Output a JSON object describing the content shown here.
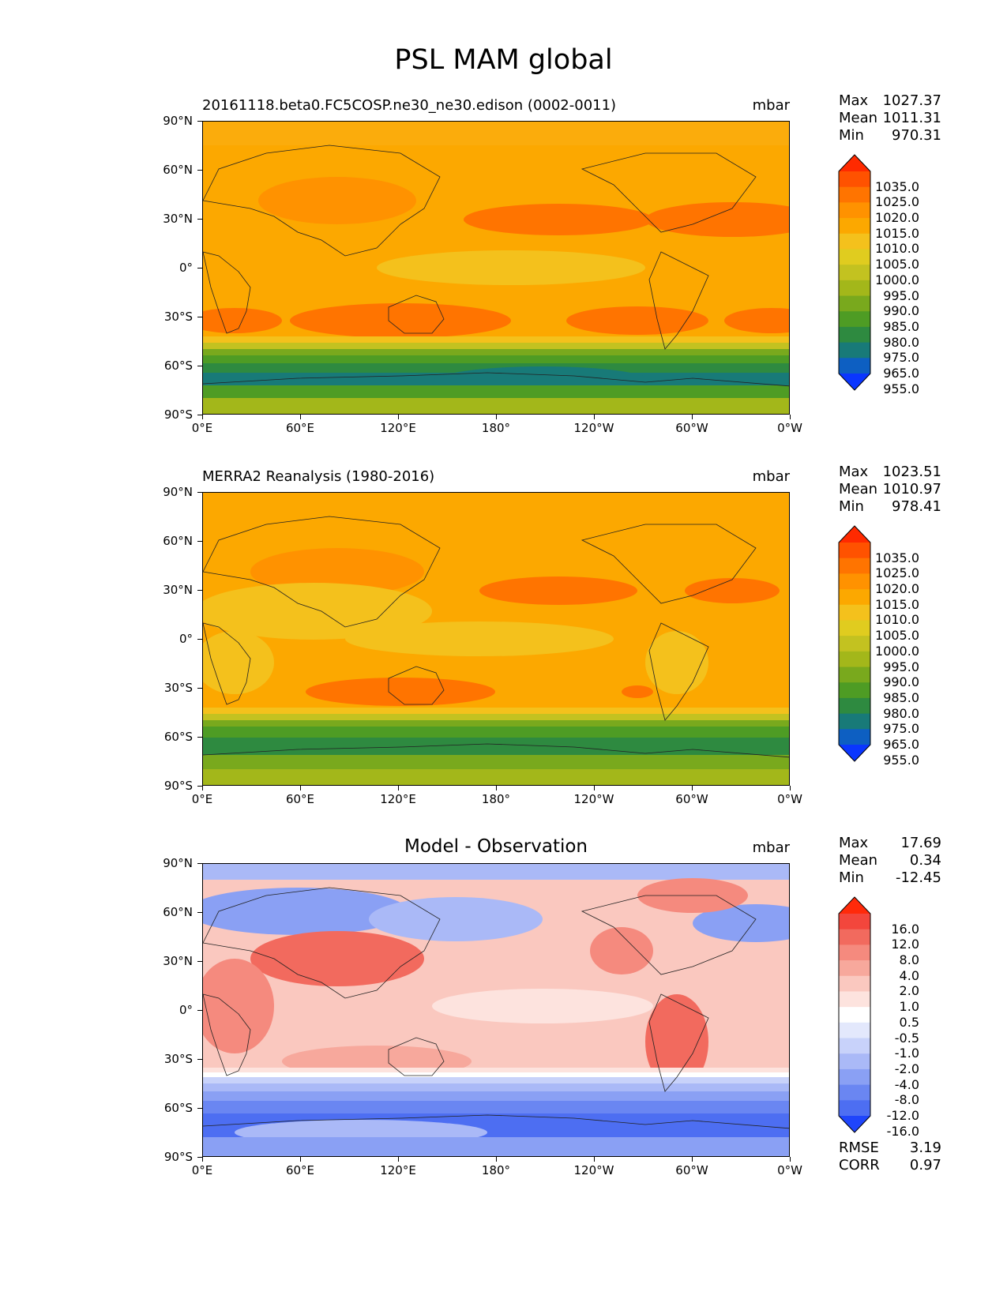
{
  "title": "PSL MAM global",
  "x_ticks": [
    "0°E",
    "60°E",
    "120°E",
    "180°",
    "120°W",
    "60°W",
    "0°W"
  ],
  "y_ticks": [
    "90°N",
    "60°N",
    "30°N",
    "0°",
    "30°S",
    "60°S",
    "90°S"
  ],
  "panels": [
    {
      "id": "model",
      "title": "20161118.beta0.FC5COSP.ne30_ne30.edison (0002-0011)",
      "title_style": "left",
      "units": "mbar",
      "stats": [
        {
          "label": "Max",
          "value": "1027.37"
        },
        {
          "label": "Mean",
          "value": "1011.31"
        },
        {
          "label": "Min",
          "value": "970.31"
        }
      ],
      "colorbar_labels": [
        "1035.0",
        "1025.0",
        "1020.0",
        "1015.0",
        "1010.0",
        "1005.0",
        "1000.0",
        "995.0",
        "990.0",
        "985.0",
        "980.0",
        "975.0",
        "965.0",
        "955.0"
      ],
      "colorbar_colors": [
        "#ff2a00",
        "#ff5200",
        "#ff7400",
        "#ff9200",
        "#fca800",
        "#f4c11c",
        "#e0cc1f",
        "#c3c220",
        "#a3b71a",
        "#79a91d",
        "#4e9c24",
        "#2e8a40",
        "#187a78",
        "#0d5fc2",
        "#0a36ff"
      ]
    },
    {
      "id": "obs",
      "title": "MERRA2 Reanalysis (1980-2016)",
      "title_style": "left",
      "units": "mbar",
      "stats": [
        {
          "label": "Max",
          "value": "1023.51"
        },
        {
          "label": "Mean",
          "value": "1010.97"
        },
        {
          "label": "Min",
          "value": "978.41"
        }
      ],
      "colorbar_labels": [
        "1035.0",
        "1025.0",
        "1020.0",
        "1015.0",
        "1010.0",
        "1005.0",
        "1000.0",
        "995.0",
        "990.0",
        "985.0",
        "980.0",
        "975.0",
        "965.0",
        "955.0"
      ],
      "colorbar_colors": [
        "#ff2a00",
        "#ff5200",
        "#ff7400",
        "#ff9200",
        "#fca800",
        "#f4c11c",
        "#e0cc1f",
        "#c3c220",
        "#a3b71a",
        "#79a91d",
        "#4e9c24",
        "#2e8a40",
        "#187a78",
        "#0d5fc2",
        "#0a36ff"
      ]
    },
    {
      "id": "diff",
      "title": "Model - Observation",
      "title_style": "center",
      "units": "mbar",
      "stats": [
        {
          "label": "Max",
          "value": "17.69"
        },
        {
          "label": "Mean",
          "value": "0.34"
        },
        {
          "label": "Min",
          "value": "-12.45"
        }
      ],
      "colorbar_labels": [
        "16.0",
        "12.0",
        "8.0",
        "4.0",
        "2.0",
        "1.0",
        "0.5",
        "-0.5",
        "-1.0",
        "-2.0",
        "-4.0",
        "-8.0",
        "-12.0",
        "-16.0"
      ],
      "colorbar_colors": [
        "#ff2a0a",
        "#f3463c",
        "#f26a5e",
        "#f58a7e",
        "#f7a89c",
        "#fac8bf",
        "#fde3de",
        "#ffffff",
        "#e3e8fc",
        "#c8d2fa",
        "#aab9f7",
        "#8aa0f4",
        "#6a86f2",
        "#4d6ef2",
        "#1f45fb"
      ],
      "extra_stats": [
        {
          "label": "RMSE",
          "value": "3.19"
        },
        {
          "label": "CORR",
          "value": "0.97"
        }
      ]
    }
  ]
}
